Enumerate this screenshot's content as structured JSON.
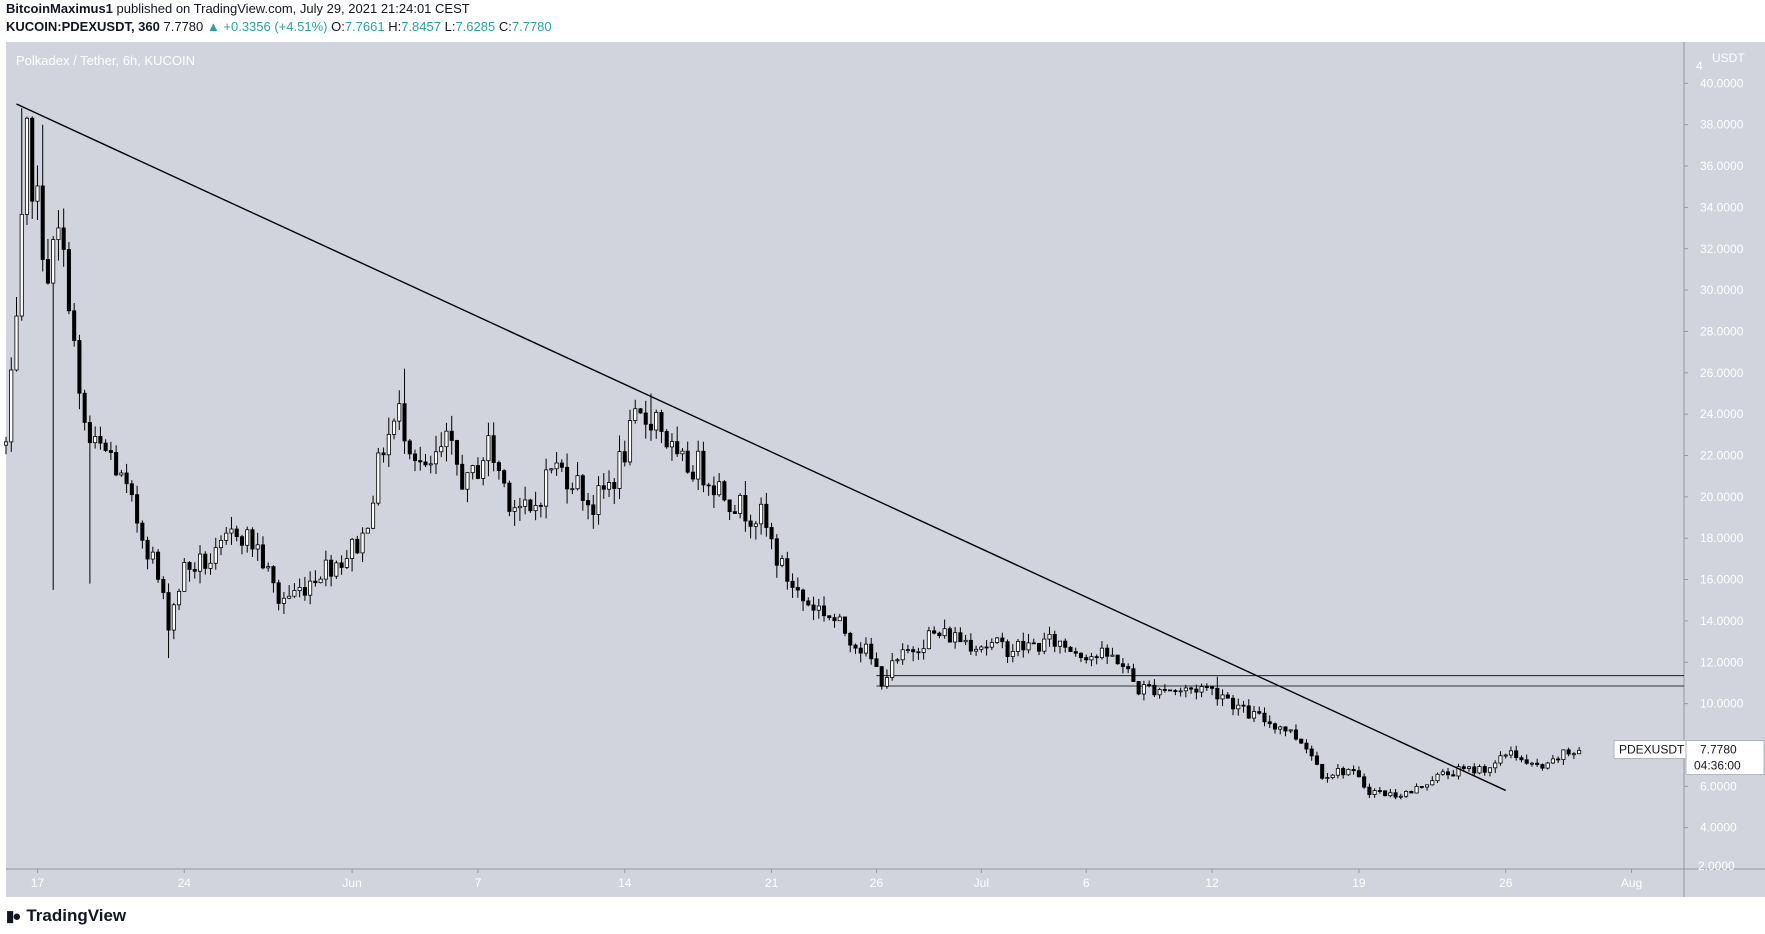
{
  "header": {
    "publisher": "BitcoinMaximus1",
    "published_text": "published on TradingView.com, July 29, 2021 21:24:01 CEST",
    "symbol": "KUCOIN:PDEXUSDT, 360",
    "last": "7.7780",
    "change": "+0.3356 (+4.51%)",
    "open_label": "O:",
    "open": "7.7661",
    "high_label": "H:",
    "high": "7.8457",
    "low_label": "L:",
    "low": "7.6285",
    "close_label": "C:",
    "close": "7.7780"
  },
  "footer": {
    "brand": "TradingView"
  },
  "colors": {
    "plot_bg": "#d1d4dc",
    "candle": "#000000",
    "up_text": "#26a69a"
  },
  "chart_data": {
    "type": "candlestick",
    "title": "Polkadex / Tether, 6h, KUCOIN",
    "y_unit": "USDT",
    "ylim": [
      2.0,
      42.0
    ],
    "y_ticks": [
      4.0,
      6.0,
      8.0,
      10.0,
      12.0,
      14.0,
      16.0,
      18.0,
      20.0,
      22.0,
      24.0,
      26.0,
      28.0,
      30.0,
      32.0,
      34.0,
      36.0,
      38.0,
      40.0
    ],
    "y_tick_labels": [
      "4.0000",
      "6.0000",
      "8.0000",
      "10.0000",
      "12.0000",
      "14.0000",
      "16.0000",
      "18.0000",
      "20.0000",
      "22.0000",
      "24.0000",
      "26.0000",
      "28.0000",
      "30.0000",
      "32.0000",
      "34.0000",
      "36.0000",
      "38.0000",
      "40.0000"
    ],
    "y_edge_labels": {
      "top": "4",
      "bottom": "2.0000"
    },
    "x_range": [
      "2021-05-15T12:00",
      "2021-08-03T12:00"
    ],
    "x_ticks": [
      {
        "label": "17",
        "date": "2021-05-17"
      },
      {
        "label": "24",
        "date": "2021-05-24"
      },
      {
        "label": "Jun",
        "date": "2021-06-01"
      },
      {
        "label": "7",
        "date": "2021-06-07"
      },
      {
        "label": "14",
        "date": "2021-06-14"
      },
      {
        "label": "21",
        "date": "2021-06-21"
      },
      {
        "label": "26",
        "date": "2021-06-26"
      },
      {
        "label": "Jul",
        "date": "2021-07-01"
      },
      {
        "label": "6",
        "date": "2021-07-06"
      },
      {
        "label": "12",
        "date": "2021-07-12"
      },
      {
        "label": "19",
        "date": "2021-07-19"
      },
      {
        "label": "26",
        "date": "2021-07-26"
      },
      {
        "label": "Aug",
        "date": "2021-08-01"
      }
    ],
    "path_points": [
      [
        "2021-05-15T12:00",
        22.5
      ],
      [
        "2021-05-16T00:00",
        28.0
      ],
      [
        "2021-05-16T12:00",
        37.0
      ],
      [
        "2021-05-17T00:00",
        34.0
      ],
      [
        "2021-05-17T12:00",
        31.0
      ],
      [
        "2021-05-18T00:00",
        32.5
      ],
      [
        "2021-05-18T12:00",
        30.0
      ],
      [
        "2021-05-19T00:00",
        24.5
      ],
      [
        "2021-05-19T12:00",
        22.5
      ],
      [
        "2021-05-20T12:00",
        22.0
      ],
      [
        "2021-05-21T12:00",
        19.5
      ],
      [
        "2021-05-22T12:00",
        17.0
      ],
      [
        "2021-05-23T06:00",
        14.0
      ],
      [
        "2021-05-24T00:00",
        16.5
      ],
      [
        "2021-05-25T12:00",
        17.0
      ],
      [
        "2021-05-26T12:00",
        18.5
      ],
      [
        "2021-05-27T12:00",
        17.5
      ],
      [
        "2021-05-28T12:00",
        15.0
      ],
      [
        "2021-05-29T12:00",
        15.5
      ],
      [
        "2021-05-30T12:00",
        16.5
      ],
      [
        "2021-05-31T12:00",
        17.0
      ],
      [
        "2021-06-01T12:00",
        18.0
      ],
      [
        "2021-06-02T12:00",
        22.5
      ],
      [
        "2021-06-03T06:00",
        24.0
      ],
      [
        "2021-06-04T12:00",
        21.0
      ],
      [
        "2021-06-05T12:00",
        22.5
      ],
      [
        "2021-06-06T12:00",
        20.5
      ],
      [
        "2021-06-07T12:00",
        22.5
      ],
      [
        "2021-06-08T12:00",
        20.0
      ],
      [
        "2021-06-09T12:00",
        19.0
      ],
      [
        "2021-06-10T12:00",
        21.5
      ],
      [
        "2021-06-11T12:00",
        21.0
      ],
      [
        "2021-06-12T12:00",
        19.5
      ],
      [
        "2021-06-13T12:00",
        21.0
      ],
      [
        "2021-06-14T12:00",
        23.5
      ],
      [
        "2021-06-15T12:00",
        24.0
      ],
      [
        "2021-06-16T12:00",
        21.5
      ],
      [
        "2021-06-17T12:00",
        21.5
      ],
      [
        "2021-06-18T12:00",
        20.5
      ],
      [
        "2021-06-19T12:00",
        19.5
      ],
      [
        "2021-06-20T12:00",
        19.0
      ],
      [
        "2021-06-21T12:00",
        16.5
      ],
      [
        "2021-06-22T12:00",
        15.0
      ],
      [
        "2021-06-23T12:00",
        14.5
      ],
      [
        "2021-06-24T12:00",
        13.5
      ],
      [
        "2021-06-25T12:00",
        12.5
      ],
      [
        "2021-06-26T06:00",
        11.2
      ],
      [
        "2021-06-27T12:00",
        12.5
      ],
      [
        "2021-06-28T12:00",
        13.3
      ],
      [
        "2021-06-29T12:00",
        13.3
      ],
      [
        "2021-06-30T12:00",
        13.0
      ],
      [
        "2021-07-01T12:00",
        12.8
      ],
      [
        "2021-07-02T12:00",
        12.7
      ],
      [
        "2021-07-03T12:00",
        12.8
      ],
      [
        "2021-07-04T12:00",
        13.0
      ],
      [
        "2021-07-05T12:00",
        12.6
      ],
      [
        "2021-07-06T12:00",
        12.3
      ],
      [
        "2021-07-07T12:00",
        12.2
      ],
      [
        "2021-07-08T12:00",
        10.7
      ],
      [
        "2021-07-09T12:00",
        10.8
      ],
      [
        "2021-07-10T12:00",
        10.6
      ],
      [
        "2021-07-11T12:00",
        10.8
      ],
      [
        "2021-07-12T12:00",
        10.5
      ],
      [
        "2021-07-13T12:00",
        9.6
      ],
      [
        "2021-07-14T12:00",
        9.2
      ],
      [
        "2021-07-15T12:00",
        8.8
      ],
      [
        "2021-07-16T12:00",
        8.0
      ],
      [
        "2021-07-17T06:00",
        6.6
      ],
      [
        "2021-07-18T12:00",
        6.8
      ],
      [
        "2021-07-19T12:00",
        5.8
      ],
      [
        "2021-07-20T12:00",
        5.6
      ],
      [
        "2021-07-21T12:00",
        5.7
      ],
      [
        "2021-07-22T12:00",
        6.4
      ],
      [
        "2021-07-23T12:00",
        6.7
      ],
      [
        "2021-07-24T12:00",
        6.8
      ],
      [
        "2021-07-25T12:00",
        7.0
      ],
      [
        "2021-07-26T06:00",
        7.8
      ],
      [
        "2021-07-27T00:00",
        7.0
      ],
      [
        "2021-07-28T00:00",
        6.9
      ],
      [
        "2021-07-28T12:00",
        7.4
      ],
      [
        "2021-07-29T12:00",
        7.78
      ]
    ],
    "wick_spikes": [
      [
        "2021-05-16T06:00",
        38.8
      ],
      [
        "2021-05-17T06:00",
        38.0
      ],
      [
        "2021-05-17T18:00",
        15.5
      ],
      [
        "2021-05-19T12:00",
        15.8
      ],
      [
        "2021-05-23T06:00",
        12.2
      ],
      [
        "2021-06-03T12:00",
        26.2
      ],
      [
        "2021-06-15T06:00",
        25.0
      ],
      [
        "2021-07-12T06:00",
        11.3
      ]
    ],
    "trendline": {
      "start": [
        "2021-05-16T00:00",
        39.0
      ],
      "end": [
        "2021-07-26T00:00",
        5.8
      ]
    },
    "horizontal_lines": [
      {
        "y": 11.35,
        "from": "2021-06-26T00:00"
      },
      {
        "y": 10.85,
        "from": "2021-06-26T00:00"
      }
    ],
    "last_price_tag": {
      "symbol": "PDEXUSDT",
      "price": "7.7780",
      "countdown": "04:36:00",
      "value": 7.778
    }
  }
}
